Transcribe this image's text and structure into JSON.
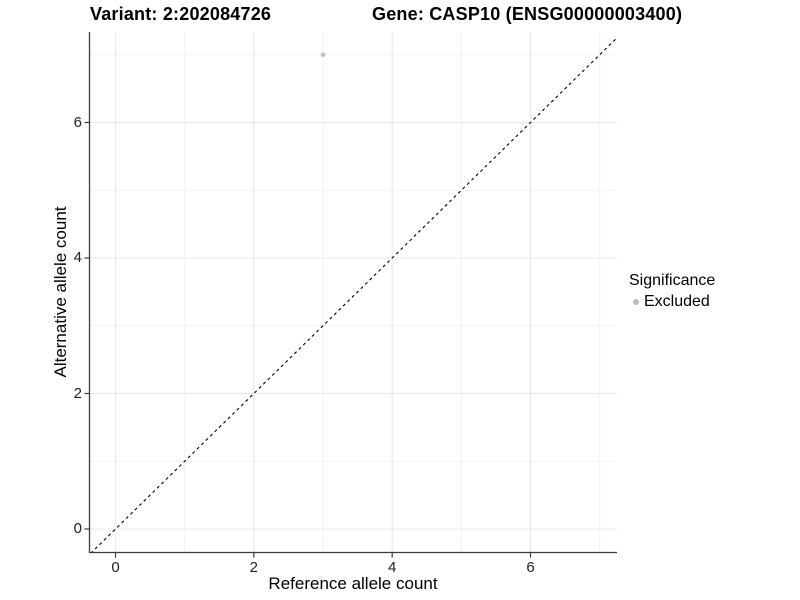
{
  "title": {
    "variant_label": "Variant: 2:202084726",
    "gene_label": "Gene: CASP10 (ENSG00000003400)"
  },
  "chart_data": {
    "type": "scatter",
    "xlabel": "Reference allele count",
    "ylabel": "Alternative allele count",
    "x_ticks": [
      0,
      2,
      4,
      6
    ],
    "y_ticks": [
      0,
      2,
      4,
      6
    ],
    "x_minor_ticks": [
      1,
      3,
      5,
      7
    ],
    "y_minor_ticks": [
      1,
      3,
      5,
      7
    ],
    "xlim": [
      -0.35,
      7.35
    ],
    "ylim": [
      -0.35,
      7.35
    ],
    "grid": "major and minor, light grey on white",
    "legend_position": "right",
    "series": [
      {
        "name": "Excluded",
        "color": "#bebebe",
        "points": [
          [
            3,
            7
          ]
        ]
      }
    ],
    "reference_line": {
      "type": "identity y=x",
      "style": "dashed",
      "color": "#000000"
    }
  },
  "legend": {
    "title": "Significance",
    "items": [
      {
        "label": "Excluded",
        "color": "#bebebe"
      }
    ]
  },
  "colors": {
    "background": "#ffffff",
    "grid_major": "#e8e8e8",
    "grid_minor": "#f2f2f2",
    "axis_line": "#3a3a3a",
    "tick_text": "#222222",
    "point": "#bebebe"
  }
}
